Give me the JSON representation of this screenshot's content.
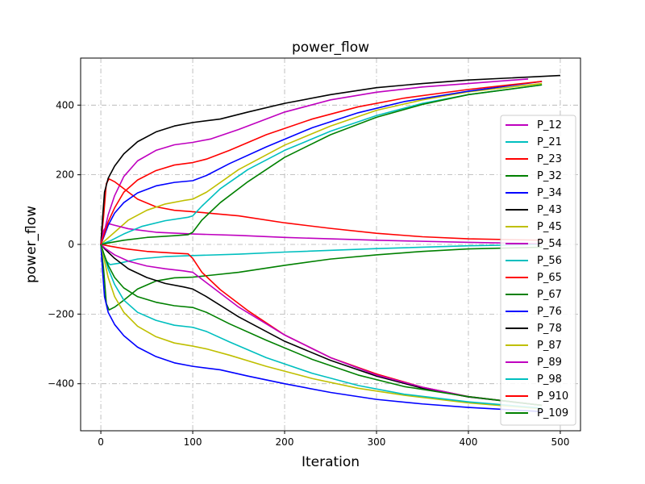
{
  "chart_data": {
    "type": "line",
    "title": "power_flow",
    "xlabel": "Iteration",
    "ylabel": "power_flow",
    "xlim": [
      -22,
      522
    ],
    "ylim": [
      -535,
      535
    ],
    "xticks": [
      0,
      100,
      200,
      300,
      400,
      500
    ],
    "yticks": [
      -400,
      -200,
      0,
      200,
      400
    ],
    "xtick_labels": [
      "0",
      "100",
      "200",
      "300",
      "400",
      "500"
    ],
    "ytick_labels": [
      "−400",
      "−200",
      "0",
      "200",
      "400"
    ],
    "grid": true,
    "legend_position": "right",
    "series": [
      {
        "name": "P_12",
        "color": "#bf00bf",
        "points": [
          [
            0,
            0
          ],
          [
            3,
            28
          ],
          [
            8,
            85
          ],
          [
            15,
            140
          ],
          [
            25,
            195
          ],
          [
            40,
            240
          ],
          [
            60,
            270
          ],
          [
            80,
            286
          ],
          [
            100,
            293
          ],
          [
            120,
            303
          ],
          [
            150,
            330
          ],
          [
            200,
            380
          ],
          [
            250,
            415
          ],
          [
            300,
            437
          ],
          [
            350,
            452
          ],
          [
            400,
            462
          ],
          [
            465,
            475
          ]
        ]
      },
      {
        "name": "P_21",
        "color": "#00bfbf",
        "points": [
          [
            0,
            0
          ],
          [
            5,
            -45
          ],
          [
            10,
            -58
          ],
          [
            20,
            -54
          ],
          [
            40,
            -42
          ],
          [
            70,
            -35
          ],
          [
            100,
            -32
          ],
          [
            150,
            -28
          ],
          [
            200,
            -22
          ],
          [
            300,
            -12
          ],
          [
            400,
            -4
          ],
          [
            480,
            0
          ]
        ]
      },
      {
        "name": "P_23",
        "color": "#ff0000",
        "points": [
          [
            0,
            0
          ],
          [
            3,
            80
          ],
          [
            6,
            175
          ],
          [
            9,
            188
          ],
          [
            15,
            180
          ],
          [
            25,
            160
          ],
          [
            40,
            130
          ],
          [
            60,
            108
          ],
          [
            80,
            98
          ],
          [
            100,
            94
          ],
          [
            150,
            82
          ],
          [
            200,
            62
          ],
          [
            250,
            46
          ],
          [
            300,
            32
          ],
          [
            350,
            22
          ],
          [
            400,
            16
          ],
          [
            480,
            12
          ]
        ]
      },
      {
        "name": "P_32",
        "color": "#008000",
        "points": [
          [
            0,
            0
          ],
          [
            3,
            -70
          ],
          [
            6,
            -170
          ],
          [
            9,
            -188
          ],
          [
            15,
            -180
          ],
          [
            25,
            -160
          ],
          [
            40,
            -128
          ],
          [
            60,
            -105
          ],
          [
            80,
            -96
          ],
          [
            100,
            -94
          ],
          [
            150,
            -80
          ],
          [
            200,
            -60
          ],
          [
            250,
            -42
          ],
          [
            300,
            -30
          ],
          [
            350,
            -20
          ],
          [
            400,
            -13
          ],
          [
            480,
            -8
          ]
        ]
      },
      {
        "name": "P_34",
        "color": "#0000ff",
        "points": [
          [
            0,
            0
          ],
          [
            2,
            -80
          ],
          [
            4,
            -150
          ],
          [
            8,
            -195
          ],
          [
            15,
            -230
          ],
          [
            25,
            -262
          ],
          [
            40,
            -295
          ],
          [
            60,
            -322
          ],
          [
            80,
            -340
          ],
          [
            100,
            -350
          ],
          [
            130,
            -360
          ],
          [
            160,
            -378
          ],
          [
            200,
            -400
          ],
          [
            250,
            -425
          ],
          [
            300,
            -445
          ],
          [
            350,
            -458
          ],
          [
            400,
            -468
          ],
          [
            480,
            -480
          ]
        ]
      },
      {
        "name": "P_43",
        "color": "#000000",
        "points": [
          [
            0,
            0
          ],
          [
            2,
            80
          ],
          [
            4,
            150
          ],
          [
            8,
            190
          ],
          [
            15,
            225
          ],
          [
            25,
            260
          ],
          [
            40,
            295
          ],
          [
            60,
            323
          ],
          [
            80,
            340
          ],
          [
            100,
            350
          ],
          [
            130,
            360
          ],
          [
            160,
            380
          ],
          [
            200,
            405
          ],
          [
            250,
            430
          ],
          [
            300,
            450
          ],
          [
            350,
            462
          ],
          [
            400,
            472
          ],
          [
            500,
            485
          ]
        ]
      },
      {
        "name": "P_45",
        "color": "#bfbf00",
        "points": [
          [
            0,
            0
          ],
          [
            5,
            12
          ],
          [
            15,
            35
          ],
          [
            30,
            70
          ],
          [
            50,
            98
          ],
          [
            70,
            116
          ],
          [
            90,
            126
          ],
          [
            100,
            130
          ],
          [
            115,
            150
          ],
          [
            150,
            215
          ],
          [
            200,
            285
          ],
          [
            250,
            340
          ],
          [
            300,
            385
          ],
          [
            350,
            415
          ],
          [
            400,
            438
          ],
          [
            480,
            462
          ]
        ]
      },
      {
        "name": "P_54",
        "color": "#bf00bf",
        "points": [
          [
            0,
            0
          ],
          [
            3,
            40
          ],
          [
            8,
            60
          ],
          [
            15,
            55
          ],
          [
            30,
            45
          ],
          [
            60,
            35
          ],
          [
            100,
            30
          ],
          [
            150,
            26
          ],
          [
            200,
            20
          ],
          [
            300,
            12
          ],
          [
            400,
            6
          ],
          [
            480,
            2
          ]
        ]
      },
      {
        "name": "P_56",
        "color": "#00bfbf",
        "points": [
          [
            0,
            0
          ],
          [
            10,
            10
          ],
          [
            25,
            30
          ],
          [
            45,
            52
          ],
          [
            70,
            68
          ],
          [
            95,
            78
          ],
          [
            100,
            82
          ],
          [
            110,
            110
          ],
          [
            130,
            160
          ],
          [
            160,
            215
          ],
          [
            200,
            270
          ],
          [
            250,
            325
          ],
          [
            300,
            370
          ],
          [
            350,
            405
          ],
          [
            400,
            430
          ],
          [
            480,
            458
          ]
        ]
      },
      {
        "name": "P_65",
        "color": "#ff0000",
        "points": [
          [
            0,
            0
          ],
          [
            10,
            -5
          ],
          [
            25,
            -12
          ],
          [
            50,
            -20
          ],
          [
            80,
            -25
          ],
          [
            95,
            -27
          ],
          [
            100,
            -40
          ],
          [
            110,
            -80
          ],
          [
            130,
            -130
          ],
          [
            160,
            -190
          ],
          [
            200,
            -260
          ],
          [
            250,
            -325
          ],
          [
            300,
            -372
          ],
          [
            350,
            -410
          ],
          [
            400,
            -437
          ],
          [
            480,
            -462
          ]
        ]
      },
      {
        "name": "P_67",
        "color": "#008000",
        "points": [
          [
            0,
            0
          ],
          [
            10,
            5
          ],
          [
            25,
            12
          ],
          [
            50,
            20
          ],
          [
            80,
            25
          ],
          [
            95,
            28
          ],
          [
            100,
            35
          ],
          [
            110,
            70
          ],
          [
            130,
            120
          ],
          [
            160,
            180
          ],
          [
            200,
            250
          ],
          [
            250,
            315
          ],
          [
            300,
            365
          ],
          [
            350,
            402
          ],
          [
            400,
            430
          ],
          [
            480,
            458
          ]
        ]
      },
      {
        "name": "P_76",
        "color": "#0000ff",
        "points": [
          [
            0,
            0
          ],
          [
            3,
            20
          ],
          [
            8,
            55
          ],
          [
            15,
            90
          ],
          [
            25,
            120
          ],
          [
            40,
            148
          ],
          [
            60,
            168
          ],
          [
            80,
            178
          ],
          [
            100,
            183
          ],
          [
            115,
            198
          ],
          [
            140,
            232
          ],
          [
            180,
            280
          ],
          [
            230,
            335
          ],
          [
            280,
            378
          ],
          [
            330,
            410
          ],
          [
            400,
            440
          ],
          [
            480,
            468
          ]
        ]
      },
      {
        "name": "P_78",
        "color": "#000000",
        "points": [
          [
            0,
            0
          ],
          [
            5,
            -15
          ],
          [
            15,
            -40
          ],
          [
            30,
            -70
          ],
          [
            50,
            -95
          ],
          [
            70,
            -112
          ],
          [
            90,
            -122
          ],
          [
            100,
            -128
          ],
          [
            115,
            -150
          ],
          [
            150,
            -208
          ],
          [
            200,
            -278
          ],
          [
            250,
            -333
          ],
          [
            300,
            -378
          ],
          [
            350,
            -413
          ],
          [
            400,
            -438
          ],
          [
            480,
            -462
          ]
        ]
      },
      {
        "name": "P_87",
        "color": "#bfbf00",
        "points": [
          [
            0,
            0
          ],
          [
            3,
            -35
          ],
          [
            8,
            -95
          ],
          [
            15,
            -150
          ],
          [
            25,
            -195
          ],
          [
            40,
            -235
          ],
          [
            60,
            -265
          ],
          [
            80,
            -283
          ],
          [
            100,
            -292
          ],
          [
            115,
            -300
          ],
          [
            140,
            -318
          ],
          [
            180,
            -350
          ],
          [
            230,
            -385
          ],
          [
            280,
            -413
          ],
          [
            330,
            -433
          ],
          [
            400,
            -455
          ],
          [
            480,
            -472
          ]
        ]
      },
      {
        "name": "P_89",
        "color": "#bf00bf",
        "points": [
          [
            0,
            0
          ],
          [
            5,
            -12
          ],
          [
            15,
            -30
          ],
          [
            30,
            -48
          ],
          [
            50,
            -62
          ],
          [
            70,
            -70
          ],
          [
            90,
            -76
          ],
          [
            100,
            -80
          ],
          [
            115,
            -110
          ],
          [
            150,
            -180
          ],
          [
            200,
            -260
          ],
          [
            250,
            -325
          ],
          [
            300,
            -375
          ],
          [
            350,
            -410
          ],
          [
            400,
            -437
          ],
          [
            480,
            -462
          ]
        ]
      },
      {
        "name": "P_98",
        "color": "#00bfbf",
        "points": [
          [
            0,
            0
          ],
          [
            3,
            -25
          ],
          [
            8,
            -70
          ],
          [
            15,
            -115
          ],
          [
            25,
            -160
          ],
          [
            40,
            -195
          ],
          [
            60,
            -218
          ],
          [
            80,
            -232
          ],
          [
            100,
            -238
          ],
          [
            115,
            -250
          ],
          [
            140,
            -280
          ],
          [
            180,
            -325
          ],
          [
            230,
            -370
          ],
          [
            280,
            -405
          ],
          [
            330,
            -430
          ],
          [
            400,
            -452
          ],
          [
            480,
            -470
          ]
        ]
      },
      {
        "name": "P_910",
        "color": "#ff0000",
        "points": [
          [
            0,
            0
          ],
          [
            3,
            25
          ],
          [
            8,
            65
          ],
          [
            15,
            105
          ],
          [
            25,
            150
          ],
          [
            40,
            185
          ],
          [
            60,
            212
          ],
          [
            80,
            228
          ],
          [
            100,
            235
          ],
          [
            115,
            245
          ],
          [
            140,
            270
          ],
          [
            180,
            315
          ],
          [
            230,
            360
          ],
          [
            280,
            395
          ],
          [
            330,
            420
          ],
          [
            400,
            445
          ],
          [
            480,
            468
          ]
        ]
      },
      {
        "name": "P_109",
        "color": "#008000",
        "points": [
          [
            0,
            0
          ],
          [
            3,
            -25
          ],
          [
            8,
            -60
          ],
          [
            15,
            -95
          ],
          [
            25,
            -125
          ],
          [
            40,
            -150
          ],
          [
            60,
            -166
          ],
          [
            80,
            -176
          ],
          [
            100,
            -181
          ],
          [
            115,
            -195
          ],
          [
            140,
            -228
          ],
          [
            180,
            -275
          ],
          [
            230,
            -330
          ],
          [
            280,
            -375
          ],
          [
            330,
            -408
          ],
          [
            400,
            -437
          ],
          [
            480,
            -462
          ]
        ]
      }
    ]
  }
}
